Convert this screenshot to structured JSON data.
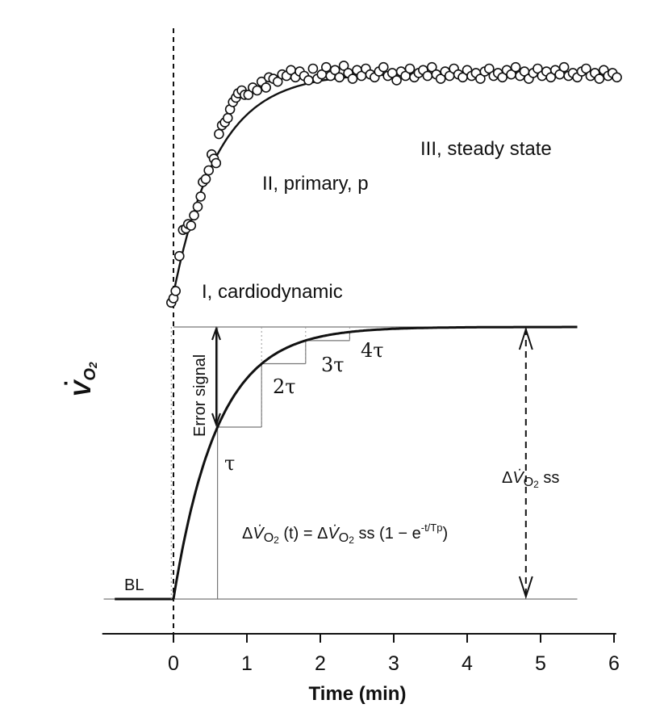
{
  "chart_data": [
    {
      "type": "scatter",
      "description_role": "measured VO2 response",
      "x_unit": "min",
      "points": [
        [
          -0.03,
          0.14
        ],
        [
          0.0,
          0.17
        ],
        [
          0.03,
          0.22
        ],
        [
          0.08,
          0.46
        ],
        [
          0.13,
          0.64
        ],
        [
          0.17,
          0.65
        ],
        [
          0.2,
          0.68
        ],
        [
          0.24,
          0.67
        ],
        [
          0.28,
          0.74
        ],
        [
          0.33,
          0.8
        ],
        [
          0.37,
          0.87
        ],
        [
          0.4,
          0.97
        ],
        [
          0.44,
          0.99
        ],
        [
          0.48,
          1.05
        ],
        [
          0.52,
          1.16
        ],
        [
          0.55,
          1.13
        ],
        [
          0.58,
          1.1
        ],
        [
          0.62,
          1.3
        ],
        [
          0.66,
          1.36
        ],
        [
          0.7,
          1.38
        ],
        [
          0.74,
          1.41
        ],
        [
          0.77,
          1.47
        ],
        [
          0.81,
          1.52
        ],
        [
          0.85,
          1.55
        ],
        [
          0.88,
          1.58
        ],
        [
          0.93,
          1.6
        ],
        [
          0.97,
          1.57
        ],
        [
          1.02,
          1.57
        ],
        [
          1.08,
          1.62
        ],
        [
          1.14,
          1.6
        ],
        [
          1.2,
          1.66
        ],
        [
          1.26,
          1.62
        ],
        [
          1.3,
          1.69
        ],
        [
          1.36,
          1.68
        ],
        [
          1.42,
          1.66
        ],
        [
          1.48,
          1.71
        ],
        [
          1.54,
          1.7
        ],
        [
          1.6,
          1.74
        ],
        [
          1.66,
          1.69
        ],
        [
          1.72,
          1.73
        ],
        [
          1.78,
          1.7
        ],
        [
          1.84,
          1.67
        ],
        [
          1.9,
          1.75
        ],
        [
          1.96,
          1.68
        ],
        [
          2.02,
          1.71
        ],
        [
          2.08,
          1.76
        ],
        [
          2.14,
          1.7
        ],
        [
          2.2,
          1.74
        ],
        [
          2.26,
          1.69
        ],
        [
          2.32,
          1.77
        ],
        [
          2.38,
          1.72
        ],
        [
          2.44,
          1.68
        ],
        [
          2.5,
          1.74
        ],
        [
          2.56,
          1.7
        ],
        [
          2.62,
          1.75
        ],
        [
          2.68,
          1.71
        ],
        [
          2.74,
          1.69
        ],
        [
          2.8,
          1.73
        ],
        [
          2.86,
          1.76
        ],
        [
          2.92,
          1.7
        ],
        [
          2.98,
          1.72
        ],
        [
          3.04,
          1.67
        ],
        [
          3.1,
          1.73
        ],
        [
          3.16,
          1.7
        ],
        [
          3.22,
          1.75
        ],
        [
          3.28,
          1.69
        ],
        [
          3.34,
          1.72
        ],
        [
          3.4,
          1.74
        ],
        [
          3.46,
          1.7
        ],
        [
          3.52,
          1.76
        ],
        [
          3.58,
          1.71
        ],
        [
          3.64,
          1.68
        ],
        [
          3.7,
          1.73
        ],
        [
          3.76,
          1.7
        ],
        [
          3.82,
          1.75
        ],
        [
          3.88,
          1.71
        ],
        [
          3.94,
          1.69
        ],
        [
          4.0,
          1.74
        ],
        [
          4.06,
          1.7
        ],
        [
          4.12,
          1.72
        ],
        [
          4.18,
          1.68
        ],
        [
          4.24,
          1.73
        ],
        [
          4.3,
          1.75
        ],
        [
          4.36,
          1.7
        ],
        [
          4.42,
          1.72
        ],
        [
          4.48,
          1.69
        ],
        [
          4.54,
          1.74
        ],
        [
          4.6,
          1.71
        ],
        [
          4.66,
          1.76
        ],
        [
          4.72,
          1.7
        ],
        [
          4.78,
          1.73
        ],
        [
          4.84,
          1.68
        ],
        [
          4.9,
          1.72
        ],
        [
          4.96,
          1.75
        ],
        [
          5.02,
          1.7
        ],
        [
          5.08,
          1.73
        ],
        [
          5.14,
          1.69
        ],
        [
          5.2,
          1.74
        ],
        [
          5.26,
          1.71
        ],
        [
          5.32,
          1.76
        ],
        [
          5.38,
          1.7
        ],
        [
          5.44,
          1.72
        ],
        [
          5.5,
          1.69
        ],
        [
          5.56,
          1.73
        ],
        [
          5.62,
          1.75
        ],
        [
          5.68,
          1.7
        ],
        [
          5.74,
          1.72
        ],
        [
          5.8,
          1.68
        ],
        [
          5.86,
          1.74
        ],
        [
          5.92,
          1.7
        ],
        [
          5.98,
          1.72
        ],
        [
          6.04,
          1.69
        ]
      ],
      "fit_curve": {
        "tau": 0.6,
        "delay": 0.0,
        "amplitude_relative": 1.0
      },
      "phase_labels": [
        "I, cardiodynamic",
        "II, primary, p",
        "III, steady state"
      ]
    },
    {
      "type": "line",
      "description_role": "monoexponential model",
      "tau": 0.6,
      "xlim": [
        -0.95,
        5.5
      ],
      "x": [
        -0.8,
        0.0,
        0.6,
        1.2,
        1.8,
        2.4,
        3.0,
        4.0,
        5.5
      ],
      "y": [
        0.0,
        0.0,
        0.632,
        0.865,
        0.95,
        0.982,
        0.993,
        0.999,
        1.0
      ],
      "time_constants": [
        {
          "label": "τ",
          "x": 0.6,
          "y": 0.632
        },
        {
          "label": "2τ",
          "x": 1.2,
          "y": 0.865
        },
        {
          "label": "3τ",
          "x": 1.8,
          "y": 0.95
        },
        {
          "label": "4τ",
          "x": 2.4,
          "y": 0.982
        }
      ]
    }
  ],
  "axes": {
    "ylabel": "V̇O₂",
    "xlabel": "Time (min)",
    "xlim": [
      -0.95,
      6.0
    ],
    "xticks": [
      "0",
      "1",
      "2",
      "3",
      "4",
      "5",
      "6"
    ]
  },
  "annotations": {
    "phase1": "I, cardiodynamic",
    "phase2": "II, primary, p",
    "phase3": "III, steady state",
    "baseline": "BL",
    "error_signal": "Error signal",
    "tau1": "τ",
    "tau2": "2τ",
    "tau3": "3τ",
    "tau4": "4τ",
    "amplitude_label": "ΔV̇O₂ ss",
    "formula": "ΔV̇O₂ (t) = ΔV̇O₂ ss (1 − e-t/Tp)"
  }
}
